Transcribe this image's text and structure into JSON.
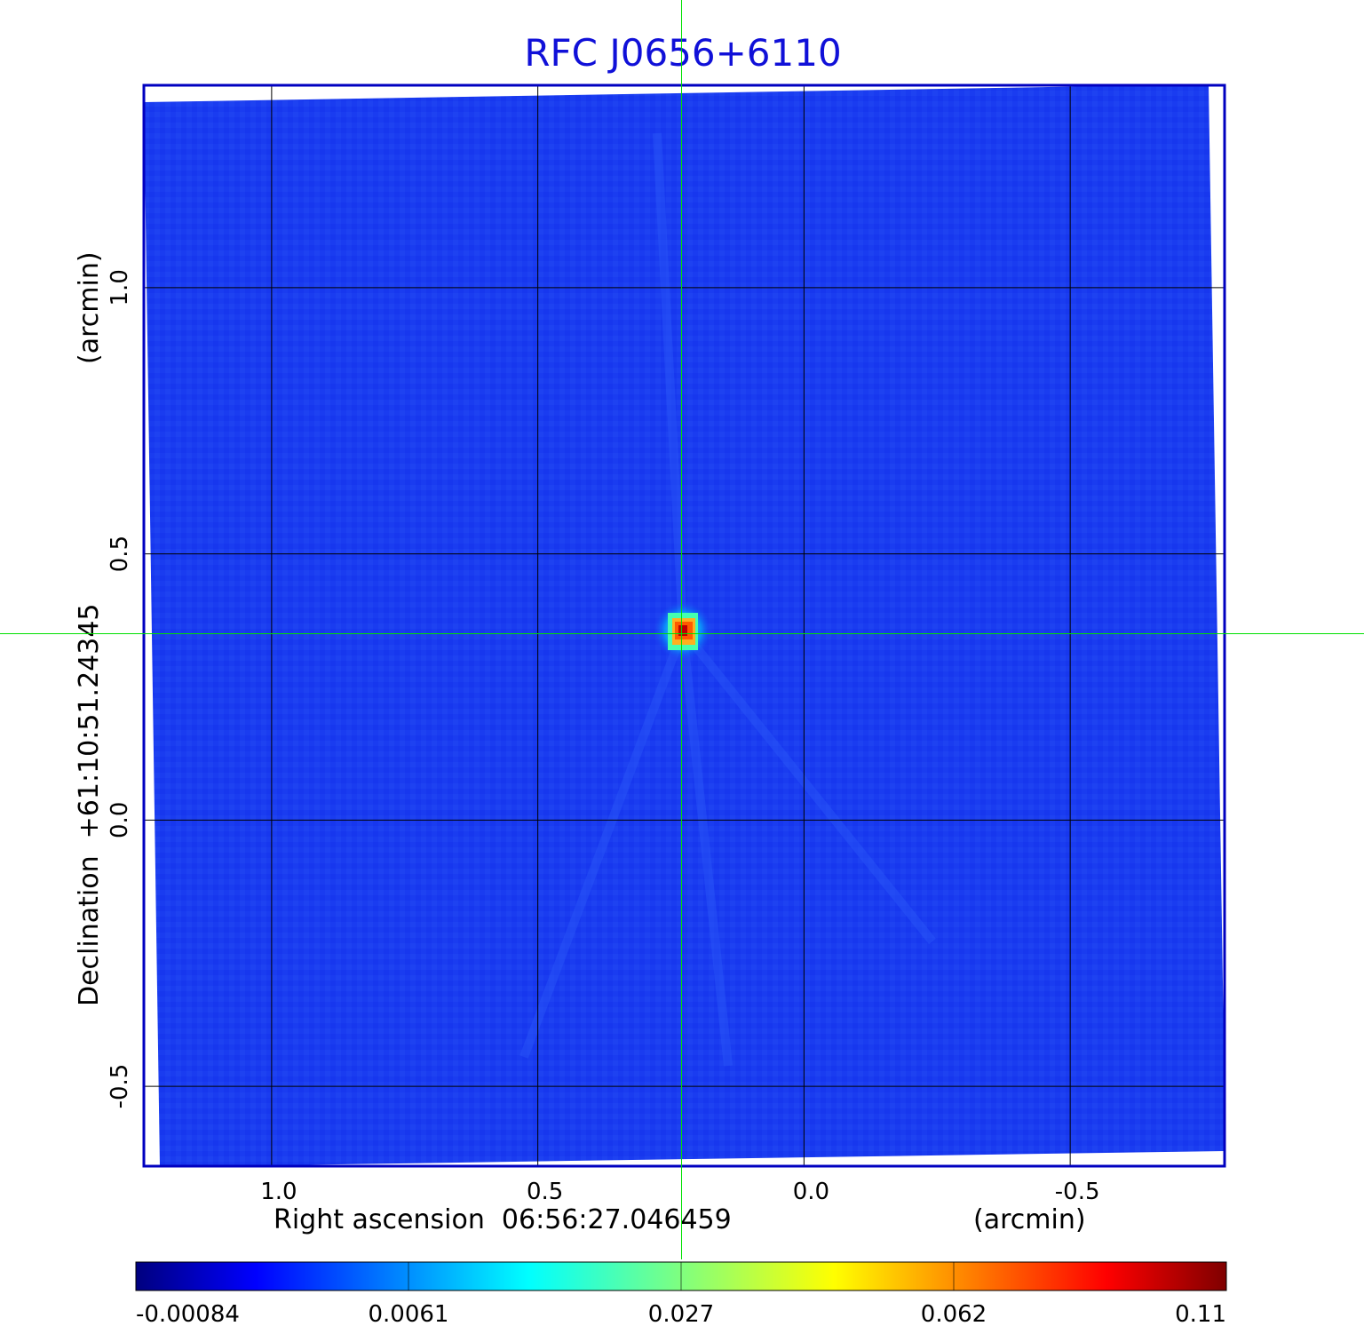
{
  "chart_data": {
    "type": "heatmap",
    "title": "RFC J0656+6110",
    "xlabel": "Right ascension  06:56:27.046459",
    "xunit": "(arcmin)",
    "ylabel": "Declination  +61:10:51.24345",
    "yunit": "(arcmin)",
    "x_ticks": [
      {
        "value": 1.0,
        "label": "1.0"
      },
      {
        "value": 0.5,
        "label": "0.5"
      },
      {
        "value": 0.0,
        "label": "0.0"
      },
      {
        "value": -0.5,
        "label": "-0.5"
      }
    ],
    "y_ticks": [
      {
        "value": 1.0,
        "label": "1.0"
      },
      {
        "value": 0.5,
        "label": "0.5"
      },
      {
        "value": 0.0,
        "label": "0.0"
      },
      {
        "value": -0.5,
        "label": "-0.5"
      }
    ],
    "xlim": [
      1.24,
      -0.79
    ],
    "ylim": [
      -0.65,
      1.38
    ],
    "grid": true,
    "x_reversed": true,
    "colorbar": {
      "colormap": "jet",
      "ticks": [
        "-0.00084",
        "0.0061",
        "0.027",
        "0.062",
        "0.11"
      ],
      "range": [
        -0.00084,
        0.11
      ]
    },
    "source_peak": {
      "x": 0.23,
      "y": 0.35,
      "value": 0.11
    },
    "crosshair": {
      "x": 0.23,
      "y": 0.35
    },
    "colors": {
      "title": "#1010d8",
      "frame": "#0000c0",
      "background_map": "#1a3cf0",
      "crosshair": "#00e000"
    }
  }
}
